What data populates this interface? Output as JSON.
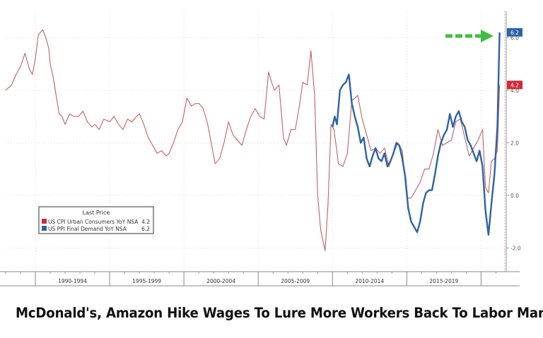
{
  "headline": "McDonald's, Amazon Hike Wages To Lure More Workers Back To Labor Market",
  "colors": {
    "cpi": "#c0606a",
    "ppi": "#2d63a3",
    "accent_red": "#d12a3a",
    "accent_blue": "#2d63a3",
    "arrow": "#3fbf3f",
    "grid": "#c9c9c9",
    "axis": "#9a9a9a"
  },
  "chart_data": {
    "type": "line",
    "legend": {
      "title": "Last Price",
      "position": "bottom-left",
      "entries": [
        {
          "name": "US CPI Urban Consumers YoY NSA",
          "value": "4.2",
          "color": "#d12a3a"
        },
        {
          "name": "US PPI Final Demand YoY NSA",
          "value": "6.2",
          "color": "#2d63a3"
        }
      ]
    },
    "x_tick_labels": [
      "1990-1994",
      "1995-1999",
      "2000-2004",
      "2005-2009",
      "2010-2014",
      "2015-2019"
    ],
    "x_range": [
      1988,
      2021.6
    ],
    "y_ticks": [
      "6.0",
      "4.0",
      "2.0",
      "0.0",
      "-2.0"
    ],
    "y_tick_values": [
      6,
      4,
      2,
      0,
      -2
    ],
    "ylim": [
      -2.9,
      7.0
    ],
    "last_value_flags": [
      {
        "label": "6.2",
        "value": 6.2,
        "series": "ppi"
      },
      {
        "label": "4.2",
        "value": 4.2,
        "series": "cpi"
      }
    ],
    "grid": true,
    "series": [
      {
        "name": "US CPI Urban Consumers YoY NSA",
        "key": "cpi",
        "x": [
          1988.0,
          1988.4,
          1988.7,
          1989.0,
          1989.3,
          1989.6,
          1989.8,
          1990.0,
          1990.2,
          1990.5,
          1990.7,
          1990.9,
          1991.0,
          1991.2,
          1991.4,
          1991.6,
          1991.8,
          1992.0,
          1992.3,
          1992.6,
          1992.9,
          1993.2,
          1993.5,
          1993.8,
          1994.0,
          1994.3,
          1994.6,
          1995.0,
          1995.3,
          1995.6,
          1995.9,
          1996.2,
          1996.5,
          1996.8,
          1997.0,
          1997.3,
          1997.6,
          1997.9,
          1998.2,
          1998.5,
          1998.8,
          1999.0,
          1999.3,
          1999.6,
          1999.9,
          2000.2,
          2000.5,
          2000.8,
          2001.0,
          2001.3,
          2001.6,
          2001.9,
          2002.1,
          2002.4,
          2002.7,
          2003.0,
          2003.3,
          2003.6,
          2003.9,
          2004.2,
          2004.5,
          2004.8,
          2005.1,
          2005.4,
          2005.7,
          2005.9,
          2006.1,
          2006.4,
          2006.7,
          2006.9,
          2007.2,
          2007.5,
          2007.8,
          2008.0,
          2008.3,
          2008.55,
          2008.8,
          2009.0,
          2009.2,
          2009.5,
          2009.7,
          2009.9,
          2010.1,
          2010.4,
          2010.7,
          2011.0,
          2011.3,
          2011.7,
          2012.0,
          2012.3,
          2012.6,
          2012.9,
          2013.2,
          2013.5,
          2013.8,
          2014.1,
          2014.4,
          2014.7,
          2015.0,
          2015.3,
          2015.6,
          2015.9,
          2016.2,
          2016.5,
          2016.8,
          2017.1,
          2017.4,
          2017.7,
          2018.0,
          2018.3,
          2018.6,
          2018.9,
          2019.2,
          2019.5,
          2019.8,
          2020.1,
          2020.3,
          2020.5,
          2020.7,
          2020.9,
          2021.1,
          2021.25
        ],
        "values": [
          4.0,
          4.2,
          4.6,
          4.9,
          5.4,
          4.8,
          4.6,
          5.2,
          6.1,
          6.3,
          6.0,
          5.6,
          5.0,
          4.5,
          3.8,
          3.1,
          3.0,
          2.7,
          3.1,
          3.0,
          3.0,
          3.2,
          2.8,
          2.6,
          2.7,
          2.5,
          2.9,
          2.8,
          3.0,
          2.7,
          2.5,
          2.9,
          2.8,
          3.0,
          3.1,
          2.7,
          2.2,
          1.9,
          1.6,
          1.7,
          1.5,
          1.6,
          2.0,
          2.5,
          2.8,
          3.7,
          3.4,
          3.5,
          3.5,
          3.3,
          2.7,
          1.8,
          1.2,
          1.4,
          2.0,
          2.8,
          2.3,
          2.1,
          1.9,
          2.5,
          3.0,
          3.3,
          3.0,
          2.9,
          4.7,
          4.3,
          4.0,
          4.2,
          2.2,
          1.9,
          2.5,
          2.5,
          3.5,
          4.3,
          4.2,
          5.5,
          3.8,
          0.0,
          -1.3,
          -2.1,
          -0.3,
          2.7,
          2.5,
          1.2,
          1.1,
          1.6,
          3.6,
          3.8,
          2.9,
          2.3,
          1.7,
          1.8,
          1.6,
          1.8,
          1.1,
          1.6,
          2.0,
          1.7,
          -0.1,
          -0.1,
          0.2,
          0.5,
          1.0,
          1.0,
          1.6,
          2.5,
          1.9,
          2.0,
          2.1,
          2.8,
          2.9,
          2.2,
          1.5,
          1.8,
          2.1,
          2.5,
          0.3,
          0.1,
          1.3,
          1.4,
          1.7,
          4.2
        ]
      },
      {
        "name": "US PPI Final Demand YoY NSA",
        "key": "ppi",
        "x": [
          2010.0,
          2010.15,
          2010.3,
          2010.5,
          2010.7,
          2010.9,
          2011.1,
          2011.3,
          2011.5,
          2011.7,
          2011.9,
          2012.1,
          2012.3,
          2012.5,
          2012.7,
          2012.9,
          2013.1,
          2013.3,
          2013.5,
          2013.7,
          2013.9,
          2014.1,
          2014.3,
          2014.5,
          2014.7,
          2014.9,
          2015.1,
          2015.3,
          2015.5,
          2015.7,
          2015.9,
          2016.1,
          2016.3,
          2016.5,
          2016.7,
          2016.9,
          2017.1,
          2017.3,
          2017.5,
          2017.7,
          2017.9,
          2018.1,
          2018.3,
          2018.5,
          2018.7,
          2018.9,
          2019.1,
          2019.3,
          2019.5,
          2019.7,
          2019.9,
          2020.1,
          2020.3,
          2020.5,
          2020.7,
          2020.9,
          2021.1,
          2021.25
        ],
        "values": [
          2.6,
          3.0,
          2.7,
          4.0,
          4.2,
          4.3,
          4.6,
          3.5,
          3.0,
          2.6,
          2.0,
          2.2,
          1.4,
          1.1,
          1.5,
          1.8,
          1.4,
          1.3,
          1.6,
          1.1,
          1.3,
          1.6,
          2.0,
          1.9,
          1.4,
          0.7,
          -0.5,
          -1.0,
          -1.2,
          -1.4,
          -1.0,
          -0.3,
          0.1,
          0.2,
          0.2,
          0.8,
          1.5,
          2.0,
          2.3,
          2.5,
          3.1,
          2.6,
          3.0,
          3.2,
          2.8,
          2.6,
          2.1,
          1.9,
          1.6,
          1.3,
          1.7,
          1.1,
          -0.6,
          -1.5,
          -0.3,
          0.8,
          2.6,
          6.2
        ]
      }
    ]
  }
}
